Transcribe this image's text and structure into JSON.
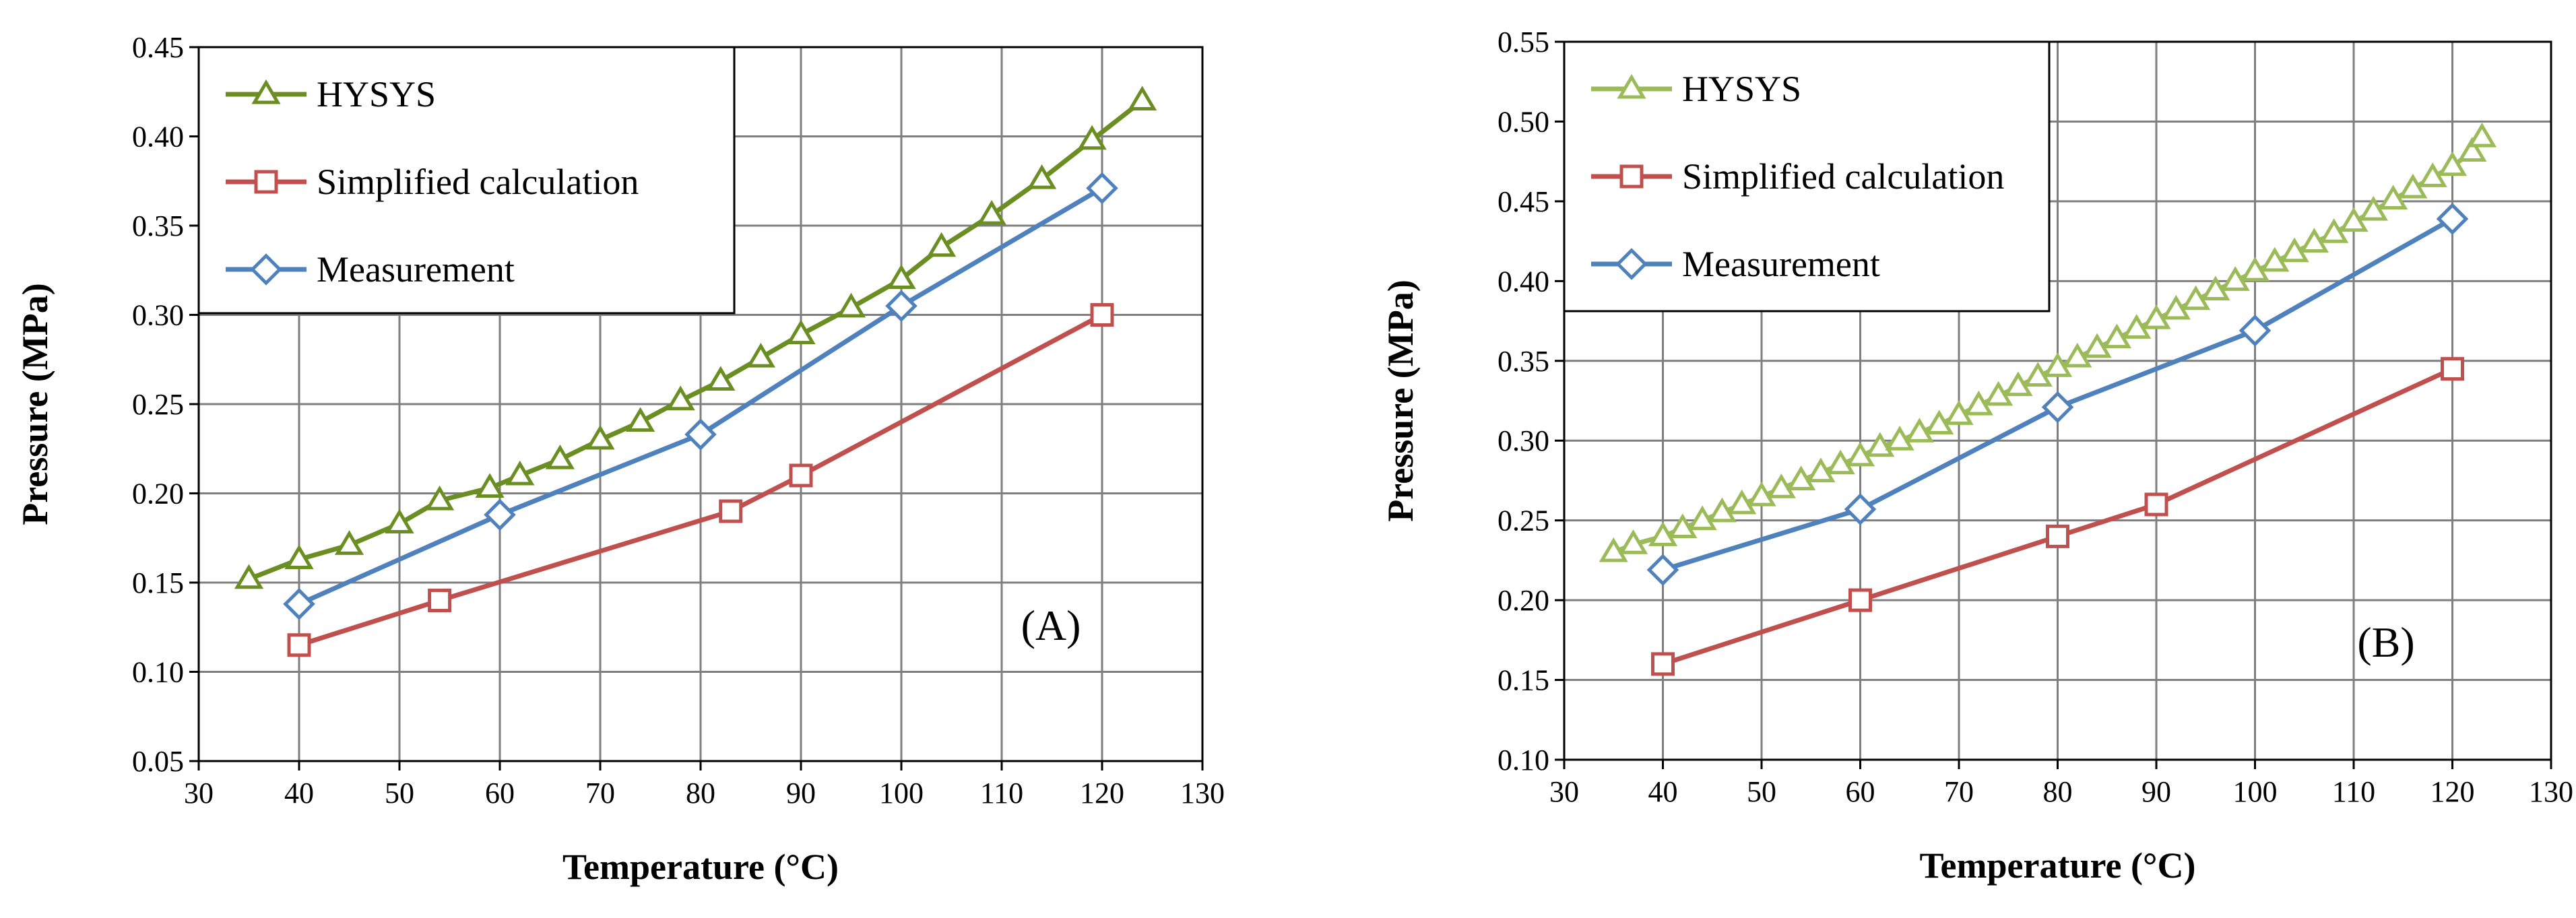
{
  "chart_data": [
    {
      "type": "line",
      "panel_label": "(A)",
      "xlabel": "Temperature (°C)",
      "ylabel": "Pressure (MPa)",
      "xlim": [
        30,
        130
      ],
      "ylim": [
        0.05,
        0.45
      ],
      "xticks": [
        30,
        40,
        50,
        60,
        70,
        80,
        90,
        100,
        110,
        120,
        130
      ],
      "xtick_labels": [
        "30",
        "40",
        "50",
        "60",
        "70",
        "80",
        "90",
        "100",
        "110",
        "120",
        "130"
      ],
      "yticks": [
        0.05,
        0.1,
        0.15,
        0.2,
        0.25,
        0.3,
        0.35,
        0.4,
        0.45
      ],
      "ytick_labels": [
        "0.05",
        "0.10",
        "0.15",
        "0.20",
        "0.25",
        "0.30",
        "0.35",
        "0.40",
        "0.45"
      ],
      "grid": true,
      "legend_position": "top-left",
      "series": [
        {
          "name": "HYSYS",
          "color": "#6b8e23",
          "marker": "triangle",
          "x": [
            35,
            40,
            45,
            50,
            54,
            59,
            62,
            66,
            70,
            74,
            78,
            82,
            86,
            90,
            95,
            100,
            104,
            109,
            114,
            119,
            124
          ],
          "y": [
            0.152,
            0.163,
            0.171,
            0.183,
            0.196,
            0.203,
            0.21,
            0.219,
            0.23,
            0.24,
            0.252,
            0.263,
            0.276,
            0.289,
            0.304,
            0.32,
            0.338,
            0.356,
            0.376,
            0.398,
            0.42
          ]
        },
        {
          "name": "Simplified calculation",
          "color": "#c0504d",
          "marker": "square",
          "x": [
            40,
            54,
            83,
            90,
            120
          ],
          "y": [
            0.115,
            0.14,
            0.19,
            0.21,
            0.3
          ]
        },
        {
          "name": "Measurement",
          "color": "#4f81bd",
          "marker": "diamond",
          "x": [
            40,
            60,
            80,
            100,
            120
          ],
          "y": [
            0.138,
            0.188,
            0.233,
            0.305,
            0.371
          ]
        }
      ]
    },
    {
      "type": "line",
      "panel_label": "(B)",
      "xlabel": "Temperature (°C)",
      "ylabel": "Pressure (MPa)",
      "xlim": [
        30,
        130
      ],
      "ylim": [
        0.1,
        0.55
      ],
      "xticks": [
        30,
        40,
        50,
        60,
        70,
        80,
        90,
        100,
        110,
        120,
        130
      ],
      "xtick_labels": [
        "30",
        "40",
        "50",
        "60",
        "70",
        "80",
        "90",
        "100",
        "110",
        "120",
        "130"
      ],
      "yticks": [
        0.1,
        0.15,
        0.2,
        0.25,
        0.3,
        0.35,
        0.4,
        0.45,
        0.5,
        0.55
      ],
      "ytick_labels": [
        "0.10",
        "0.15",
        "0.20",
        "0.25",
        "0.30",
        "0.35",
        "0.40",
        "0.45",
        "0.50",
        "0.55"
      ],
      "grid": true,
      "legend_position": "top-left",
      "series": [
        {
          "name": "HYSYS",
          "color": "#9bbb59",
          "marker": "triangle",
          "x": [
            35,
            37,
            40,
            42,
            44,
            46,
            48,
            50,
            52,
            54,
            56,
            58,
            60,
            62,
            64,
            66,
            68,
            70,
            72,
            74,
            76,
            78,
            80,
            82,
            84,
            86,
            88,
            90,
            92,
            94,
            96,
            98,
            100,
            102,
            104,
            106,
            108,
            110,
            112,
            114,
            116,
            118,
            120,
            122,
            123
          ],
          "y": [
            0.23,
            0.235,
            0.24,
            0.245,
            0.25,
            0.255,
            0.26,
            0.265,
            0.27,
            0.275,
            0.28,
            0.285,
            0.29,
            0.296,
            0.3,
            0.305,
            0.31,
            0.316,
            0.322,
            0.328,
            0.334,
            0.34,
            0.346,
            0.352,
            0.358,
            0.364,
            0.37,
            0.376,
            0.382,
            0.388,
            0.394,
            0.4,
            0.406,
            0.412,
            0.418,
            0.424,
            0.43,
            0.437,
            0.444,
            0.451,
            0.458,
            0.465,
            0.472,
            0.481,
            0.49
          ]
        },
        {
          "name": "Simplified calculation",
          "color": "#c0504d",
          "marker": "square",
          "x": [
            40,
            60,
            80,
            90,
            120
          ],
          "y": [
            0.16,
            0.2,
            0.24,
            0.26,
            0.345
          ]
        },
        {
          "name": "Measurement",
          "color": "#4f81bd",
          "marker": "diamond",
          "x": [
            40,
            60,
            80,
            100,
            120
          ],
          "y": [
            0.219,
            0.257,
            0.321,
            0.369,
            0.439
          ]
        }
      ]
    }
  ]
}
